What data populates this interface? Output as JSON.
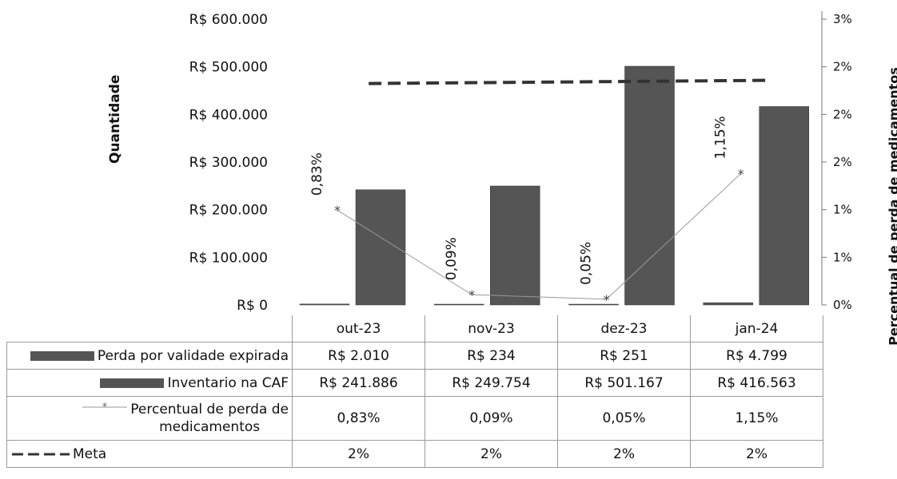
{
  "chart_data": {
    "type": "bar",
    "categories": [
      "out-23",
      "nov-23",
      "dez-23",
      "jan-24"
    ],
    "series": [
      {
        "name": "Perda por validade expirada",
        "kind": "bar",
        "axis": "left",
        "values": [
          2010,
          234,
          251,
          4799
        ],
        "color": "#555555"
      },
      {
        "name": "Inventario na CAF",
        "kind": "bar",
        "axis": "left",
        "values": [
          241886,
          249754,
          501167,
          416563
        ],
        "color": "#555555"
      },
      {
        "name": "Percentual de perda de medicamentos",
        "kind": "line",
        "axis": "right",
        "values": [
          0.83,
          0.09,
          0.05,
          1.15
        ],
        "color": "#999999"
      },
      {
        "name": "Meta",
        "kind": "dashed-line",
        "axis": "right",
        "values": [
          2,
          2,
          2,
          2
        ],
        "color": "#333333"
      }
    ],
    "ylabel": "Quantidade",
    "ylabel_right": "Percentual de perda de medicamentos",
    "ylim": [
      0,
      600000
    ],
    "ylim_right": [
      0,
      2.5
    ],
    "yticks": [
      "R$ 0",
      "R$ 100.000",
      "R$ 200.000",
      "R$ 300.000",
      "R$ 400.000",
      "R$ 500.000",
      "R$ 600.000"
    ],
    "yticks_right": [
      "0%",
      "1%",
      "1%",
      "2%",
      "2%",
      "2%",
      "3%"
    ],
    "point_labels": [
      "0,83%",
      "0,09%",
      "0,05%",
      "1,15%"
    ],
    "table": {
      "header": [
        "out-23",
        "nov-23",
        "dez-23",
        "jan-24"
      ],
      "rows": [
        {
          "label": "Perda por validade expirada",
          "values": [
            "R$ 2.010",
            "R$ 234",
            "R$ 251",
            "R$ 4.799"
          ]
        },
        {
          "label": "Inventario na CAF",
          "values": [
            "R$ 241.886",
            "R$ 249.754",
            "R$ 501.167",
            "R$ 416.563"
          ]
        },
        {
          "label_line1": "Percentual de perda de",
          "label_line2": "medicamentos",
          "values": [
            "0,83%",
            "0,09%",
            "0,05%",
            "1,15%"
          ]
        },
        {
          "label": "Meta",
          "values": [
            "2%",
            "2%",
            "2%",
            "2%"
          ]
        }
      ]
    },
    "grid": false,
    "legend": "data-table"
  }
}
